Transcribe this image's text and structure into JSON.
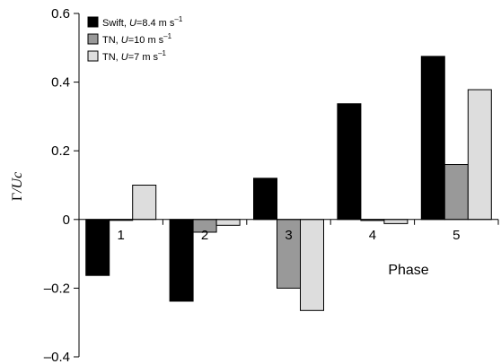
{
  "chart_data": {
    "type": "bar",
    "xlabel": "Phase",
    "ylabel_symbol": "Γ",
    "ylabel_rest": "/Uc",
    "categories": [
      "1",
      "2",
      "3",
      "4",
      "5"
    ],
    "ylim": [
      -0.4,
      0.6
    ],
    "yticks": [
      0.6,
      0.4,
      0.2,
      0,
      -0.2,
      -0.4
    ],
    "ytick_labels": [
      "0.6",
      "0.4",
      "0.2",
      "0",
      "–0.2",
      "–0.4"
    ],
    "series": [
      {
        "name": "Swift, U=8.4 m s⁻¹",
        "legend_prefix": "Swift, ",
        "legend_var": "U",
        "legend_suffix": "=8.4 m s",
        "legend_sup": "–1",
        "color": "#000000",
        "values": [
          -0.163,
          -0.238,
          0.12,
          0.337,
          0.475
        ]
      },
      {
        "name": "TN, U=10 m s⁻¹",
        "legend_prefix": "TN, ",
        "legend_var": "U",
        "legend_suffix": "=10 m s",
        "legend_sup": "–1",
        "color": "#999999",
        "values": [
          0.0,
          -0.037,
          -0.2,
          -0.003,
          0.16
        ]
      },
      {
        "name": "TN, U=7 m s⁻¹",
        "legend_prefix": "TN, ",
        "legend_var": "U",
        "legend_suffix": "=7 m s",
        "legend_sup": "–1",
        "color": "#dddddd",
        "values": [
          0.1,
          -0.017,
          -0.265,
          -0.012,
          0.378
        ]
      }
    ],
    "grid": false,
    "legend_position": "top-left"
  }
}
